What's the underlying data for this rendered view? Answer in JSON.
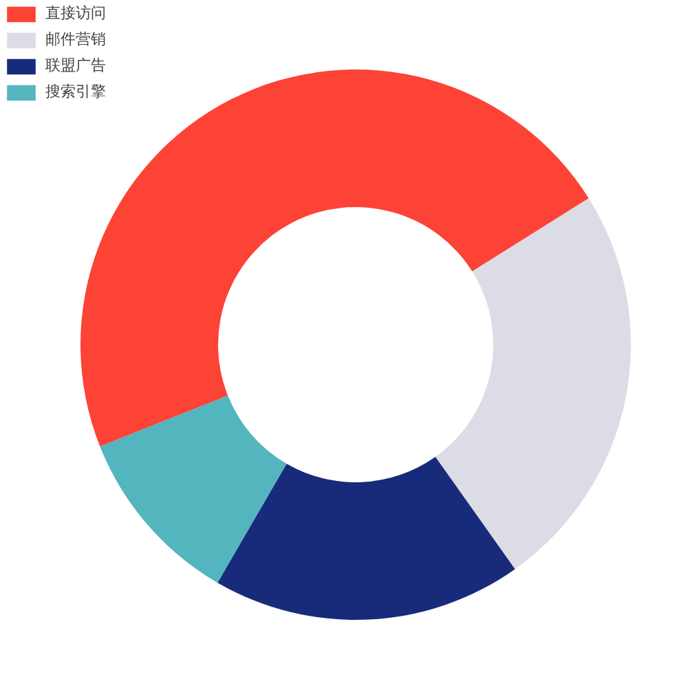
{
  "chart_data": {
    "type": "donut",
    "categories": [
      "直接访问",
      "邮件营销",
      "联盟广告",
      "搜索引擎"
    ],
    "values": [
      47.1,
      24.1,
      18.2,
      10.6
    ],
    "colors": [
      "#fd4236",
      "#dcdce6",
      "#172b7a",
      "#53b5bd"
    ],
    "legend": "top left"
  }
}
